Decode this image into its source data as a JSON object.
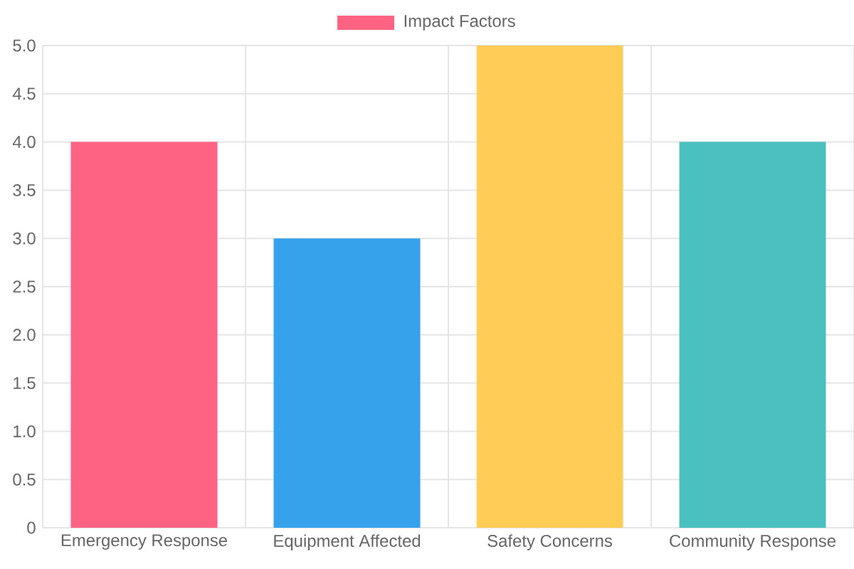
{
  "chart_data": {
    "type": "bar",
    "categories": [
      "Emergency Response",
      "Equipment Affected",
      "Safety Concerns",
      "Community Response"
    ],
    "series": [
      {
        "name": "Impact Factors",
        "colors": [
          "#ff6384",
          "#36a2eb",
          "#ffcd56",
          "#4bc0c0"
        ],
        "values": [
          4,
          3,
          5,
          4
        ]
      }
    ],
    "ylim": [
      0,
      5
    ],
    "yticks": [
      0,
      0.5,
      {
        "value": 1,
        "label": "1.0"
      },
      1.5,
      {
        "value": 2,
        "label": "2.0"
      },
      2.5,
      {
        "value": 3,
        "label": "3.0"
      },
      3.5,
      {
        "value": 4,
        "label": "4.0"
      },
      4.5,
      {
        "value": 5,
        "label": "5.0"
      }
    ],
    "grid": true,
    "legend": "top"
  }
}
